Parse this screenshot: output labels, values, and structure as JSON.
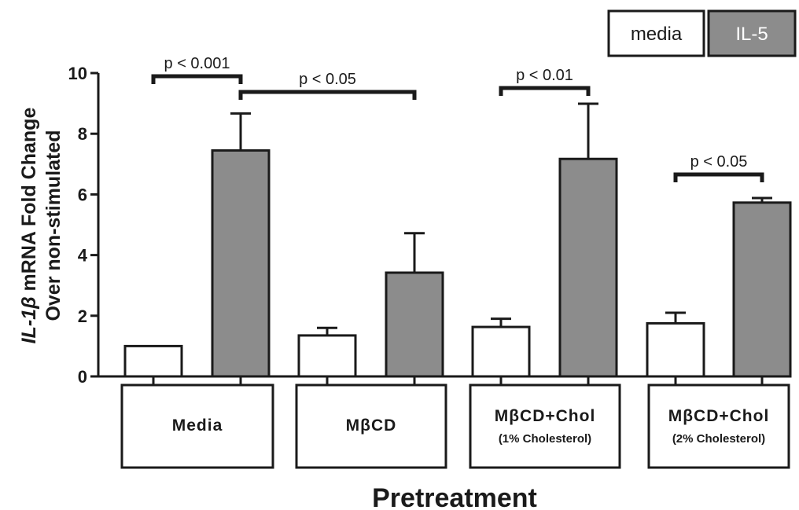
{
  "chart_data": {
    "type": "bar",
    "ylabel_lines": [
      "IL-1β mRNA Fold Change",
      "Over non-stimulated"
    ],
    "xlabel": "Pretreatment",
    "ylim": [
      0,
      10
    ],
    "yticks": [
      "0",
      "2",
      "4",
      "6",
      "8",
      "10"
    ],
    "categories": [
      {
        "label": "Media",
        "sublabel": ""
      },
      {
        "label": "MβCD",
        "sublabel": ""
      },
      {
        "label": "MβCD+Chol",
        "sublabel": "(1% Cholesterol)"
      },
      {
        "label": "MβCD+Chol",
        "sublabel": "(2% Cholesterol)"
      }
    ],
    "series": [
      {
        "name": "media",
        "color": "#ffffff",
        "values": [
          1.0,
          1.35,
          1.63,
          1.75
        ],
        "errors": [
          0.0,
          0.25,
          0.27,
          0.35
        ]
      },
      {
        "name": "IL-5",
        "color": "#8c8c8c",
        "values": [
          7.45,
          3.42,
          7.17,
          5.73
        ],
        "errors": [
          1.22,
          1.3,
          1.82,
          0.15
        ]
      }
    ],
    "significance": [
      {
        "label": "p < 0.001",
        "from": {
          "series": 0,
          "category": 0
        },
        "to": {
          "series": 1,
          "category": 0
        }
      },
      {
        "label": "p < 0.05",
        "from": {
          "series": 1,
          "category": 0
        },
        "to": {
          "series": 1,
          "category": 1
        }
      },
      {
        "label": "p < 0.01",
        "from": {
          "series": 0,
          "category": 2
        },
        "to": {
          "series": 1,
          "category": 2
        }
      },
      {
        "label": "p < 0.05",
        "from": {
          "series": 0,
          "category": 3
        },
        "to": {
          "series": 1,
          "category": 3
        }
      }
    ],
    "legend": {
      "placement": "top-right",
      "entries": [
        "media",
        "IL-5"
      ]
    },
    "grid": false
  }
}
